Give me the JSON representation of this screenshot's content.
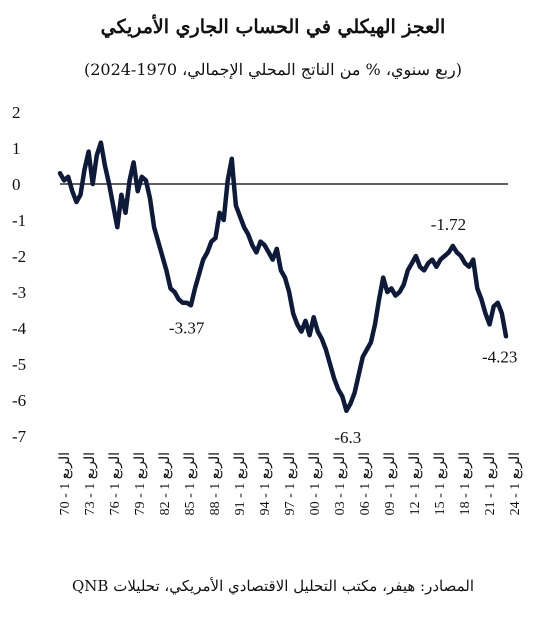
{
  "title": "العجز الهيكلي في الحساب الجاري الأمريكي",
  "subtitle": "(ربع سنوي، % من الناتج المحلي الإجمالي، 1970-2024)",
  "source": "المصادر: هيفر، مكتب التحليل الاقتصادي الأمريكي، تحليلات QNB",
  "colors": {
    "line": "#0d1a3a",
    "zero_line": "#000000"
  },
  "chart_data": {
    "type": "line",
    "title": "العجز الهيكلي في الحساب الجاري الأمريكي",
    "subtitle": "(ربع سنوي، % من الناتج المحلي الإجمالي، 1970-2024)",
    "ylim": [
      -7,
      2
    ],
    "yticks": [
      "2",
      "1",
      "0",
      "-1",
      "-2",
      "-3",
      "-4",
      "-5",
      "-6",
      "-7"
    ],
    "xlim": [
      1970.0,
      2024.75
    ],
    "xticks": [
      "70 - 1 الربع",
      "73 - 1 الربع",
      "76 - 1 الربع",
      "79 - 1 الربع",
      "82 - 1 الربع",
      "85 - 1 الربع",
      "88 - 1 الربع",
      "91 - 1 الربع",
      "94 - 1 الربع",
      "97 - 1 الربع",
      "00 - 1 الربع",
      "03 - 1 الربع",
      "06 - 1 الربع",
      "09 - 1 الربع",
      "12 - 1 الربع",
      "15 - 1 الربع",
      "18 - 1 الربع",
      "21 - 1 الربع",
      "24 - 1 الربع"
    ],
    "grid": false,
    "zero_line": true,
    "series": [
      {
        "x": [
          1970.0,
          1970.5,
          1971.0,
          1971.5,
          1972.0,
          1972.5,
          1973.0,
          1973.5,
          1974.0,
          1974.5,
          1975.0,
          1975.5,
          1976.0,
          1976.5,
          1977.0,
          1977.5,
          1978.0,
          1978.5,
          1979.0,
          1979.5,
          1980.0,
          1980.5,
          1981.0,
          1981.5,
          1982.0,
          1982.5,
          1983.0,
          1983.5,
          1984.0,
          1984.5,
          1985.0,
          1985.5,
          1986.0,
          1986.5,
          1987.0,
          1987.5,
          1988.0,
          1988.5,
          1989.0,
          1989.5,
          1990.0,
          1990.5,
          1991.0,
          1991.25,
          1991.5,
          1992.0,
          1992.5,
          1993.0,
          1993.5,
          1994.0,
          1994.5,
          1995.0,
          1995.5,
          1996.0,
          1996.5,
          1997.0,
          1997.5,
          1998.0,
          1998.5,
          1999.0,
          1999.5,
          2000.0,
          2000.5,
          2001.0,
          2001.5,
          2002.0,
          2002.5,
          2003.0,
          2003.5,
          2004.0,
          2004.5,
          2005.0,
          2005.5,
          2006.0,
          2006.5,
          2007.0,
          2007.5,
          2008.0,
          2008.5,
          2009.0,
          2009.5,
          2010.0,
          2010.5,
          2011.0,
          2011.5,
          2012.0,
          2012.5,
          2013.0,
          2013.5,
          2014.0,
          2014.5,
          2015.0,
          2015.5,
          2016.0,
          2016.5,
          2017.0,
          2017.5,
          2018.0,
          2018.5,
          2019.0,
          2019.5,
          2020.0,
          2020.5,
          2021.0,
          2021.5,
          2022.0,
          2022.5,
          2023.0,
          2023.5,
          2024.0,
          2024.5
        ],
        "values": [
          0.3,
          0.1,
          0.2,
          -0.2,
          -0.5,
          -0.3,
          0.4,
          0.9,
          0.0,
          0.8,
          1.15,
          0.5,
          0.0,
          -0.6,
          -1.2,
          -0.3,
          -0.8,
          0.1,
          0.6,
          -0.2,
          0.2,
          0.1,
          -0.4,
          -1.2,
          -1.6,
          -2.0,
          -2.4,
          -2.9,
          -3.0,
          -3.2,
          -3.3,
          -3.3,
          -3.37,
          -2.9,
          -2.5,
          -2.1,
          -1.9,
          -1.6,
          -1.5,
          -0.8,
          -1.0,
          0.1,
          0.7,
          0.0,
          -0.6,
          -0.9,
          -1.2,
          -1.4,
          -1.7,
          -1.9,
          -1.6,
          -1.7,
          -1.9,
          -2.1,
          -1.8,
          -2.4,
          -2.6,
          -3.0,
          -3.6,
          -3.9,
          -4.1,
          -3.8,
          -4.2,
          -3.7,
          -4.1,
          -4.3,
          -4.6,
          -5.0,
          -5.4,
          -5.7,
          -5.9,
          -6.3,
          -6.1,
          -5.8,
          -5.3,
          -4.8,
          -4.6,
          -4.4,
          -3.9,
          -3.2,
          -2.6,
          -3.0,
          -2.9,
          -3.1,
          -3.0,
          -2.8,
          -2.4,
          -2.2,
          -2.0,
          -2.3,
          -2.4,
          -2.2,
          -2.1,
          -2.3,
          -2.1,
          -2.0,
          -1.9,
          -1.72,
          -1.9,
          -2.0,
          -2.2,
          -2.3,
          -2.1,
          -2.9,
          -3.2,
          -3.6,
          -3.9,
          -3.4,
          -3.3,
          -3.6,
          -4.23
        ]
      }
    ],
    "annotations": [
      {
        "text": "-3.37",
        "x": 1986.0,
        "y": -3.37
      },
      {
        "text": "-6.3",
        "x": 2005.0,
        "y": -6.3
      },
      {
        "text": "-1.72",
        "x": 2018.0,
        "y": -1.72
      },
      {
        "text": "-4.23",
        "x": 2024.5,
        "y": -4.23
      }
    ]
  }
}
